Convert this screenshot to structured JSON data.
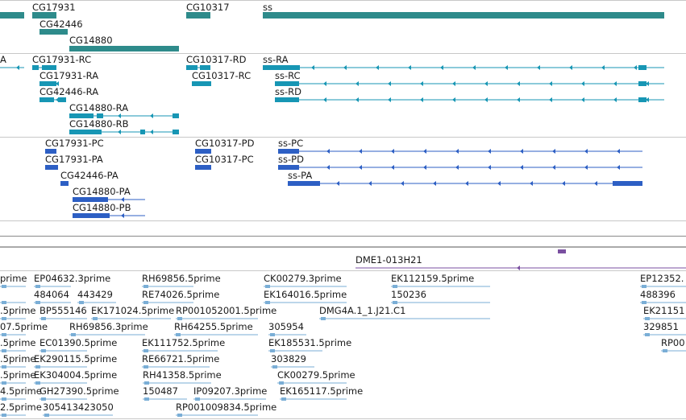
{
  "colors": {
    "gene": "#2e8b8b",
    "transcript": "#1796b4",
    "protein": "#2d5fc4",
    "clone": "#7a4fa0",
    "est": "#7aaed6"
  },
  "genes": [
    "CG17931",
    "CG10317",
    "ss",
    "CG42446",
    "CG14880"
  ],
  "transcripts": [
    "A",
    "CG17931-RC",
    "CG10317-RD",
    "ss-RA",
    "CG17931-RA",
    "CG10317-RC",
    "ss-RC",
    "CG42446-RA",
    "ss-RD",
    "CG14880-RA",
    "CG14880-RB"
  ],
  "proteins": [
    "CG17931-PC",
    "CG10317-PD",
    "ss-PC",
    "CG17931-PA",
    "CG10317-PC",
    "ss-PD",
    "CG42446-PA",
    "ss-PA",
    "CG14880-PA",
    "CG14880-PB"
  ],
  "clone": "DME1-013H21",
  "ests": [
    "prime",
    "EP04632.3prime",
    "RH69856.5prime",
    "CK00279.3prime",
    "EK112159.5prime",
    "EP12352.",
    "484064",
    "443429",
    "RE74026.5prime",
    "EK164016.5prime",
    "150236",
    "488396",
    ".5prime",
    "BP555146",
    "EK171024.5prime",
    "RP001052001.5prime",
    "DMG4A.1_1.J21.C1",
    "EK21151",
    "07.5prime",
    "RH69856.3prime",
    "RH64255.5prime",
    "305954",
    "329851",
    ".5prime",
    "EC01390.5prime",
    "EK111752.5prime",
    "EK185531.5prime",
    "RP00",
    ".5prime",
    "EK290115.5prime",
    "RE66721.5prime",
    "303829",
    ".5prime",
    "EK304004.5prime",
    "RH41358.5prime",
    "CK00279.5prime",
    "4.5prime",
    "GH27390.5prime",
    "150487",
    "IP09207.3prime",
    "EK165117.5prime",
    "2.5prime",
    "305413423050",
    "RP001009834.5prime"
  ]
}
